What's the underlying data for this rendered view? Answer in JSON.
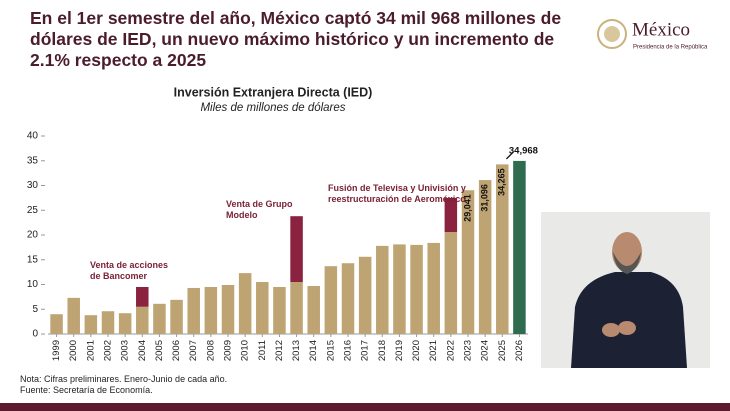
{
  "header": {
    "title": "En el 1er semestre del año, México captó 34 mil 968 millones de dólares de IED, un nuevo máximo histórico y un incremento de 2.1% respecto a 2025",
    "logo": "México",
    "logo_sub": "Presidencia de la República"
  },
  "chart_data": {
    "type": "bar",
    "stacked": true,
    "title": "Inversión Extranjera Directa (IED)",
    "subtitle": "Miles de millones de dólares",
    "categories": [
      "1999",
      "2000",
      "2001",
      "2002",
      "2003",
      "2004",
      "2005",
      "2006",
      "2007",
      "2008",
      "2009",
      "2010",
      "2011",
      "2012",
      "2013",
      "2014",
      "2015",
      "2016",
      "2017",
      "2018",
      "2019",
      "2020",
      "2021",
      "2022",
      "2023",
      "2024",
      "2025",
      "2026"
    ],
    "series": [
      {
        "color": "#bfa473",
        "values": [
          4.0,
          7.3,
          3.8,
          4.6,
          4.2,
          5.5,
          6.1,
          6.9,
          9.3,
          9.5,
          9.9,
          12.3,
          10.5,
          9.5,
          10.5,
          9.7,
          13.7,
          14.3,
          15.6,
          17.8,
          18.1,
          18.0,
          18.4,
          20.6,
          29.041,
          31.096,
          34.265,
          null
        ],
        "value_labels": [
          null,
          null,
          null,
          null,
          null,
          null,
          null,
          null,
          null,
          null,
          null,
          null,
          null,
          null,
          null,
          null,
          null,
          null,
          null,
          null,
          null,
          null,
          null,
          null,
          "29,041",
          "31,096",
          "34,265",
          null
        ]
      },
      {
        "color": "#8b2340",
        "values": [
          null,
          null,
          null,
          null,
          null,
          4.0,
          null,
          null,
          null,
          null,
          null,
          null,
          null,
          null,
          13.3,
          null,
          null,
          null,
          null,
          null,
          null,
          null,
          null,
          6.9,
          null,
          null,
          null,
          null
        ]
      },
      {
        "color": "#2e6b4f",
        "values": [
          null,
          null,
          null,
          null,
          null,
          null,
          null,
          null,
          null,
          null,
          null,
          null,
          null,
          null,
          null,
          null,
          null,
          null,
          null,
          null,
          null,
          null,
          null,
          null,
          null,
          null,
          null,
          34.968
        ],
        "value_labels": [
          null,
          null,
          null,
          null,
          null,
          null,
          null,
          null,
          null,
          null,
          null,
          null,
          null,
          null,
          null,
          null,
          null,
          null,
          null,
          null,
          null,
          null,
          null,
          null,
          null,
          null,
          null,
          "34,968"
        ]
      }
    ],
    "ylim": [
      0,
      40
    ],
    "yticks": [
      0,
      5,
      10,
      15,
      20,
      25,
      30,
      35,
      40
    ],
    "grid": false,
    "annotations": [
      "Venta de acciones de Bancomer",
      "Venta de Grupo Modelo",
      "Fusión de Televisa y Univisión y reestructuración de Aeroméxico"
    ]
  },
  "notes": [
    "Nota: Cifras preliminares. Enero-Junio de cada año.",
    "Fuente: Secretaría de Economía."
  ]
}
